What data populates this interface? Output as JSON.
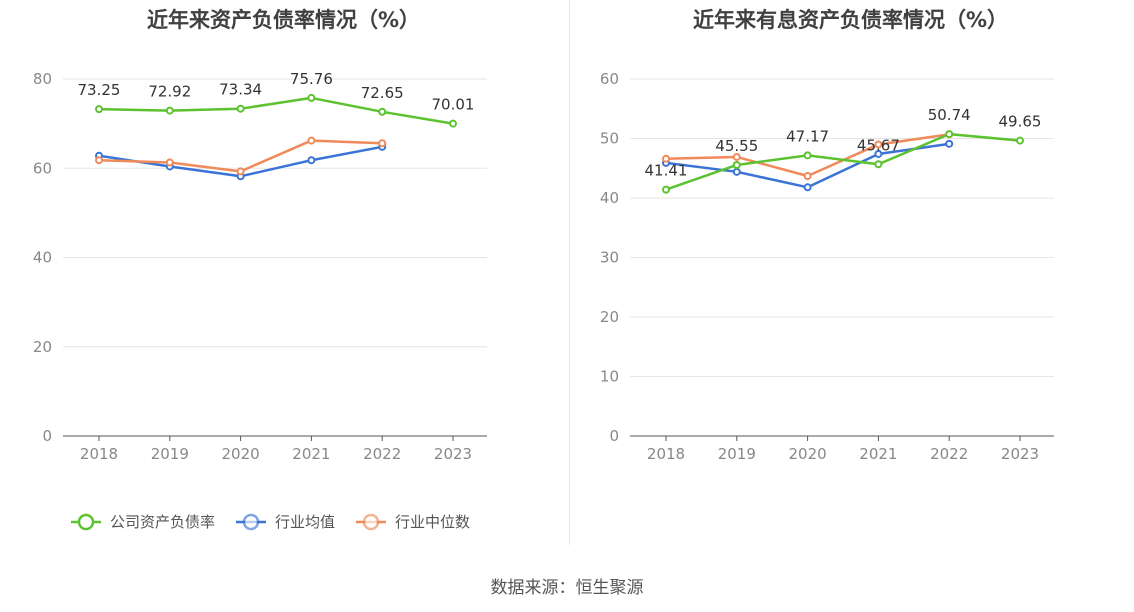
{
  "footer": {
    "source": "数据来源：恒生聚源"
  },
  "chart_data": [
    {
      "type": "line",
      "title": "近年来资产负债率情况（%）",
      "categories": [
        "2018",
        "2019",
        "2020",
        "2021",
        "2022",
        "2023"
      ],
      "ylim": [
        0,
        80
      ],
      "yticks": [
        0,
        20,
        40,
        60,
        80
      ],
      "grid": true,
      "legend": "bottom",
      "series": [
        {
          "name": "公司资产负债率",
          "color": "#5cc22f",
          "values": [
            73.25,
            72.92,
            73.34,
            75.76,
            72.65,
            70.01
          ],
          "labels": [
            "73.25",
            "72.92",
            "73.34",
            "75.76",
            "72.65",
            "70.01"
          ]
        },
        {
          "name": "行业均值",
          "color": "#3b74d6",
          "values": [
            62.8,
            60.4,
            58.2,
            61.8,
            64.8,
            null
          ]
        },
        {
          "name": "行业中位数",
          "color": "#f08a5b",
          "values": [
            61.8,
            61.3,
            59.3,
            66.2,
            65.6,
            null
          ]
        }
      ]
    },
    {
      "type": "line",
      "title": "近年来有息资产负债率情况（%）",
      "categories": [
        "2018",
        "2019",
        "2020",
        "2021",
        "2022",
        "2023"
      ],
      "ylim": [
        0,
        60
      ],
      "yticks": [
        0,
        10,
        20,
        30,
        40,
        50,
        60
      ],
      "grid": true,
      "legend": "bottom",
      "series": [
        {
          "name": "有息资产负债率",
          "color": "#5cc22f",
          "values": [
            41.41,
            45.55,
            47.17,
            45.67,
            50.74,
            49.65
          ],
          "labels": [
            "41.41",
            "45.55",
            "47.17",
            "45.67",
            "50.74",
            "49.65"
          ]
        },
        {
          "name": "行业均值",
          "color": "#3b74d6",
          "values": [
            45.9,
            44.4,
            41.8,
            47.4,
            49.1,
            null
          ]
        },
        {
          "name": "行业中位数",
          "color": "#f08a5b",
          "values": [
            46.6,
            46.9,
            43.7,
            49.0,
            50.7,
            null
          ]
        }
      ]
    }
  ]
}
